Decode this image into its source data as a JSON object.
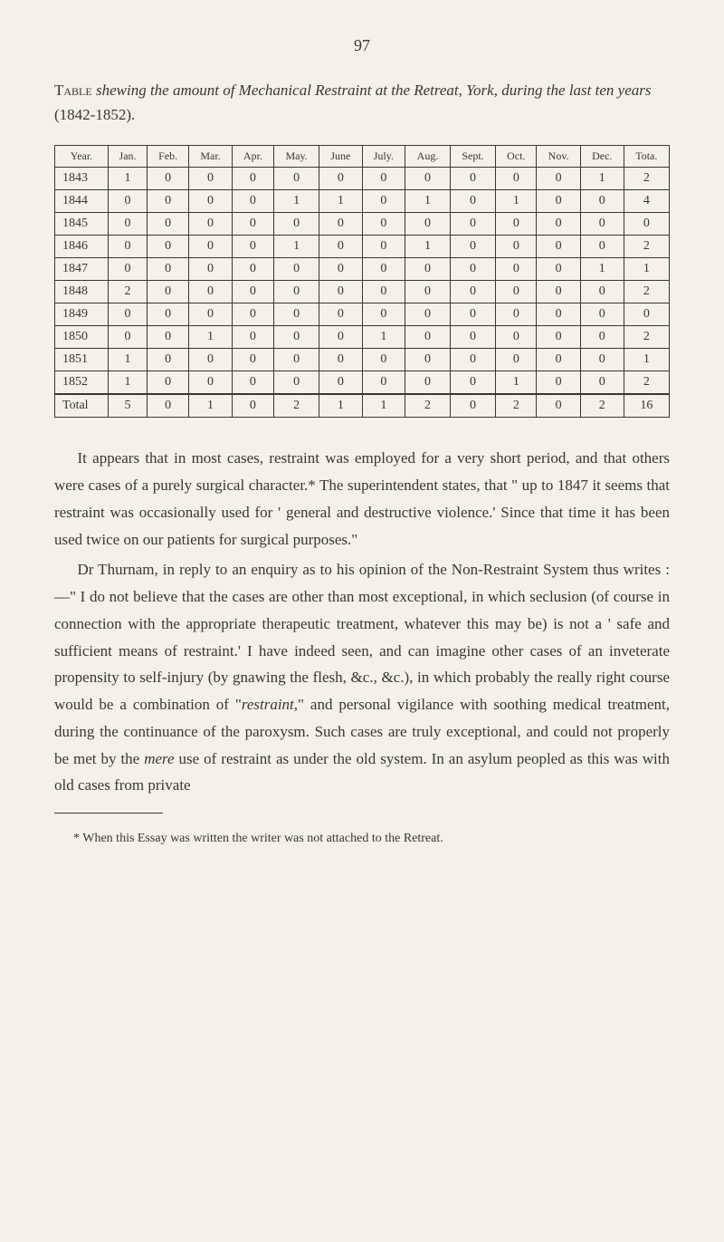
{
  "page_number": "97",
  "table_caption_prefix": "Table",
  "table_caption_body": " shewing the amount of Mechanical Restraint at the Retreat, York, during the last ten years ",
  "table_caption_years": "(1842-1852).",
  "table": {
    "columns": [
      "Year.",
      "Jan.",
      "Feb.",
      "Mar.",
      "Apr.",
      "May.",
      "June",
      "July.",
      "Aug.",
      "Sept.",
      "Oct.",
      "Nov.",
      "Dec.",
      "Tota."
    ],
    "rows": [
      [
        "1843",
        "1",
        "0",
        "0",
        "0",
        "0",
        "0",
        "0",
        "0",
        "0",
        "0",
        "0",
        "1",
        "2"
      ],
      [
        "1844",
        "0",
        "0",
        "0",
        "0",
        "1",
        "1",
        "0",
        "1",
        "0",
        "1",
        "0",
        "0",
        "4"
      ],
      [
        "1845",
        "0",
        "0",
        "0",
        "0",
        "0",
        "0",
        "0",
        "0",
        "0",
        "0",
        "0",
        "0",
        "0"
      ],
      [
        "1846",
        "0",
        "0",
        "0",
        "0",
        "1",
        "0",
        "0",
        "1",
        "0",
        "0",
        "0",
        "0",
        "2"
      ],
      [
        "1847",
        "0",
        "0",
        "0",
        "0",
        "0",
        "0",
        "0",
        "0",
        "0",
        "0",
        "0",
        "1",
        "1"
      ],
      [
        "1848",
        "2",
        "0",
        "0",
        "0",
        "0",
        "0",
        "0",
        "0",
        "0",
        "0",
        "0",
        "0",
        "2"
      ],
      [
        "1849",
        "0",
        "0",
        "0",
        "0",
        "0",
        "0",
        "0",
        "0",
        "0",
        "0",
        "0",
        "0",
        "0"
      ],
      [
        "1850",
        "0",
        "0",
        "1",
        "0",
        "0",
        "0",
        "1",
        "0",
        "0",
        "0",
        "0",
        "0",
        "2"
      ],
      [
        "1851",
        "1",
        "0",
        "0",
        "0",
        "0",
        "0",
        "0",
        "0",
        "0",
        "0",
        "0",
        "0",
        "1"
      ],
      [
        "1852",
        "1",
        "0",
        "0",
        "0",
        "0",
        "0",
        "0",
        "0",
        "0",
        "1",
        "0",
        "0",
        "2"
      ]
    ],
    "total_row": [
      "Total",
      "5",
      "0",
      "1",
      "0",
      "2",
      "1",
      "1",
      "2",
      "0",
      "2",
      "0",
      "2",
      "16"
    ]
  },
  "paragraphs": [
    "It appears that in most cases, restraint was employed for a very short period, and that others were cases of a purely surgical character.* The superintendent states, that \" up to 1847 it seems that restraint was occasionally used for ' general and destructive violence.' Since that time it has been used twice on our patients for surgical purposes.\"",
    "Dr Thurnam, in reply to an enquiry as to his opinion of the Non-Restraint System thus writes :—\" I do not believe that the cases are other than most exceptional, in which seclusion (of course in connection with the appropriate therapeutic treatment, whatever this may be) is not a ' safe and sufficient means of restraint.' I have indeed seen, and can imagine other cases of an inveterate propensity to self-injury (by gnawing the flesh, &c., &c.), in which probably the really right course would be a combination of \"restraint,\" and personal vigilance with soothing medical treatment, during the continuance of the paroxysm. Such cases are truly exceptional, and could not properly be met by the mere use of restraint as under the old system. In an asylum peopled as this was with old cases from private"
  ],
  "footnote": "* When this Essay was written the writer was not attached to the Retreat."
}
